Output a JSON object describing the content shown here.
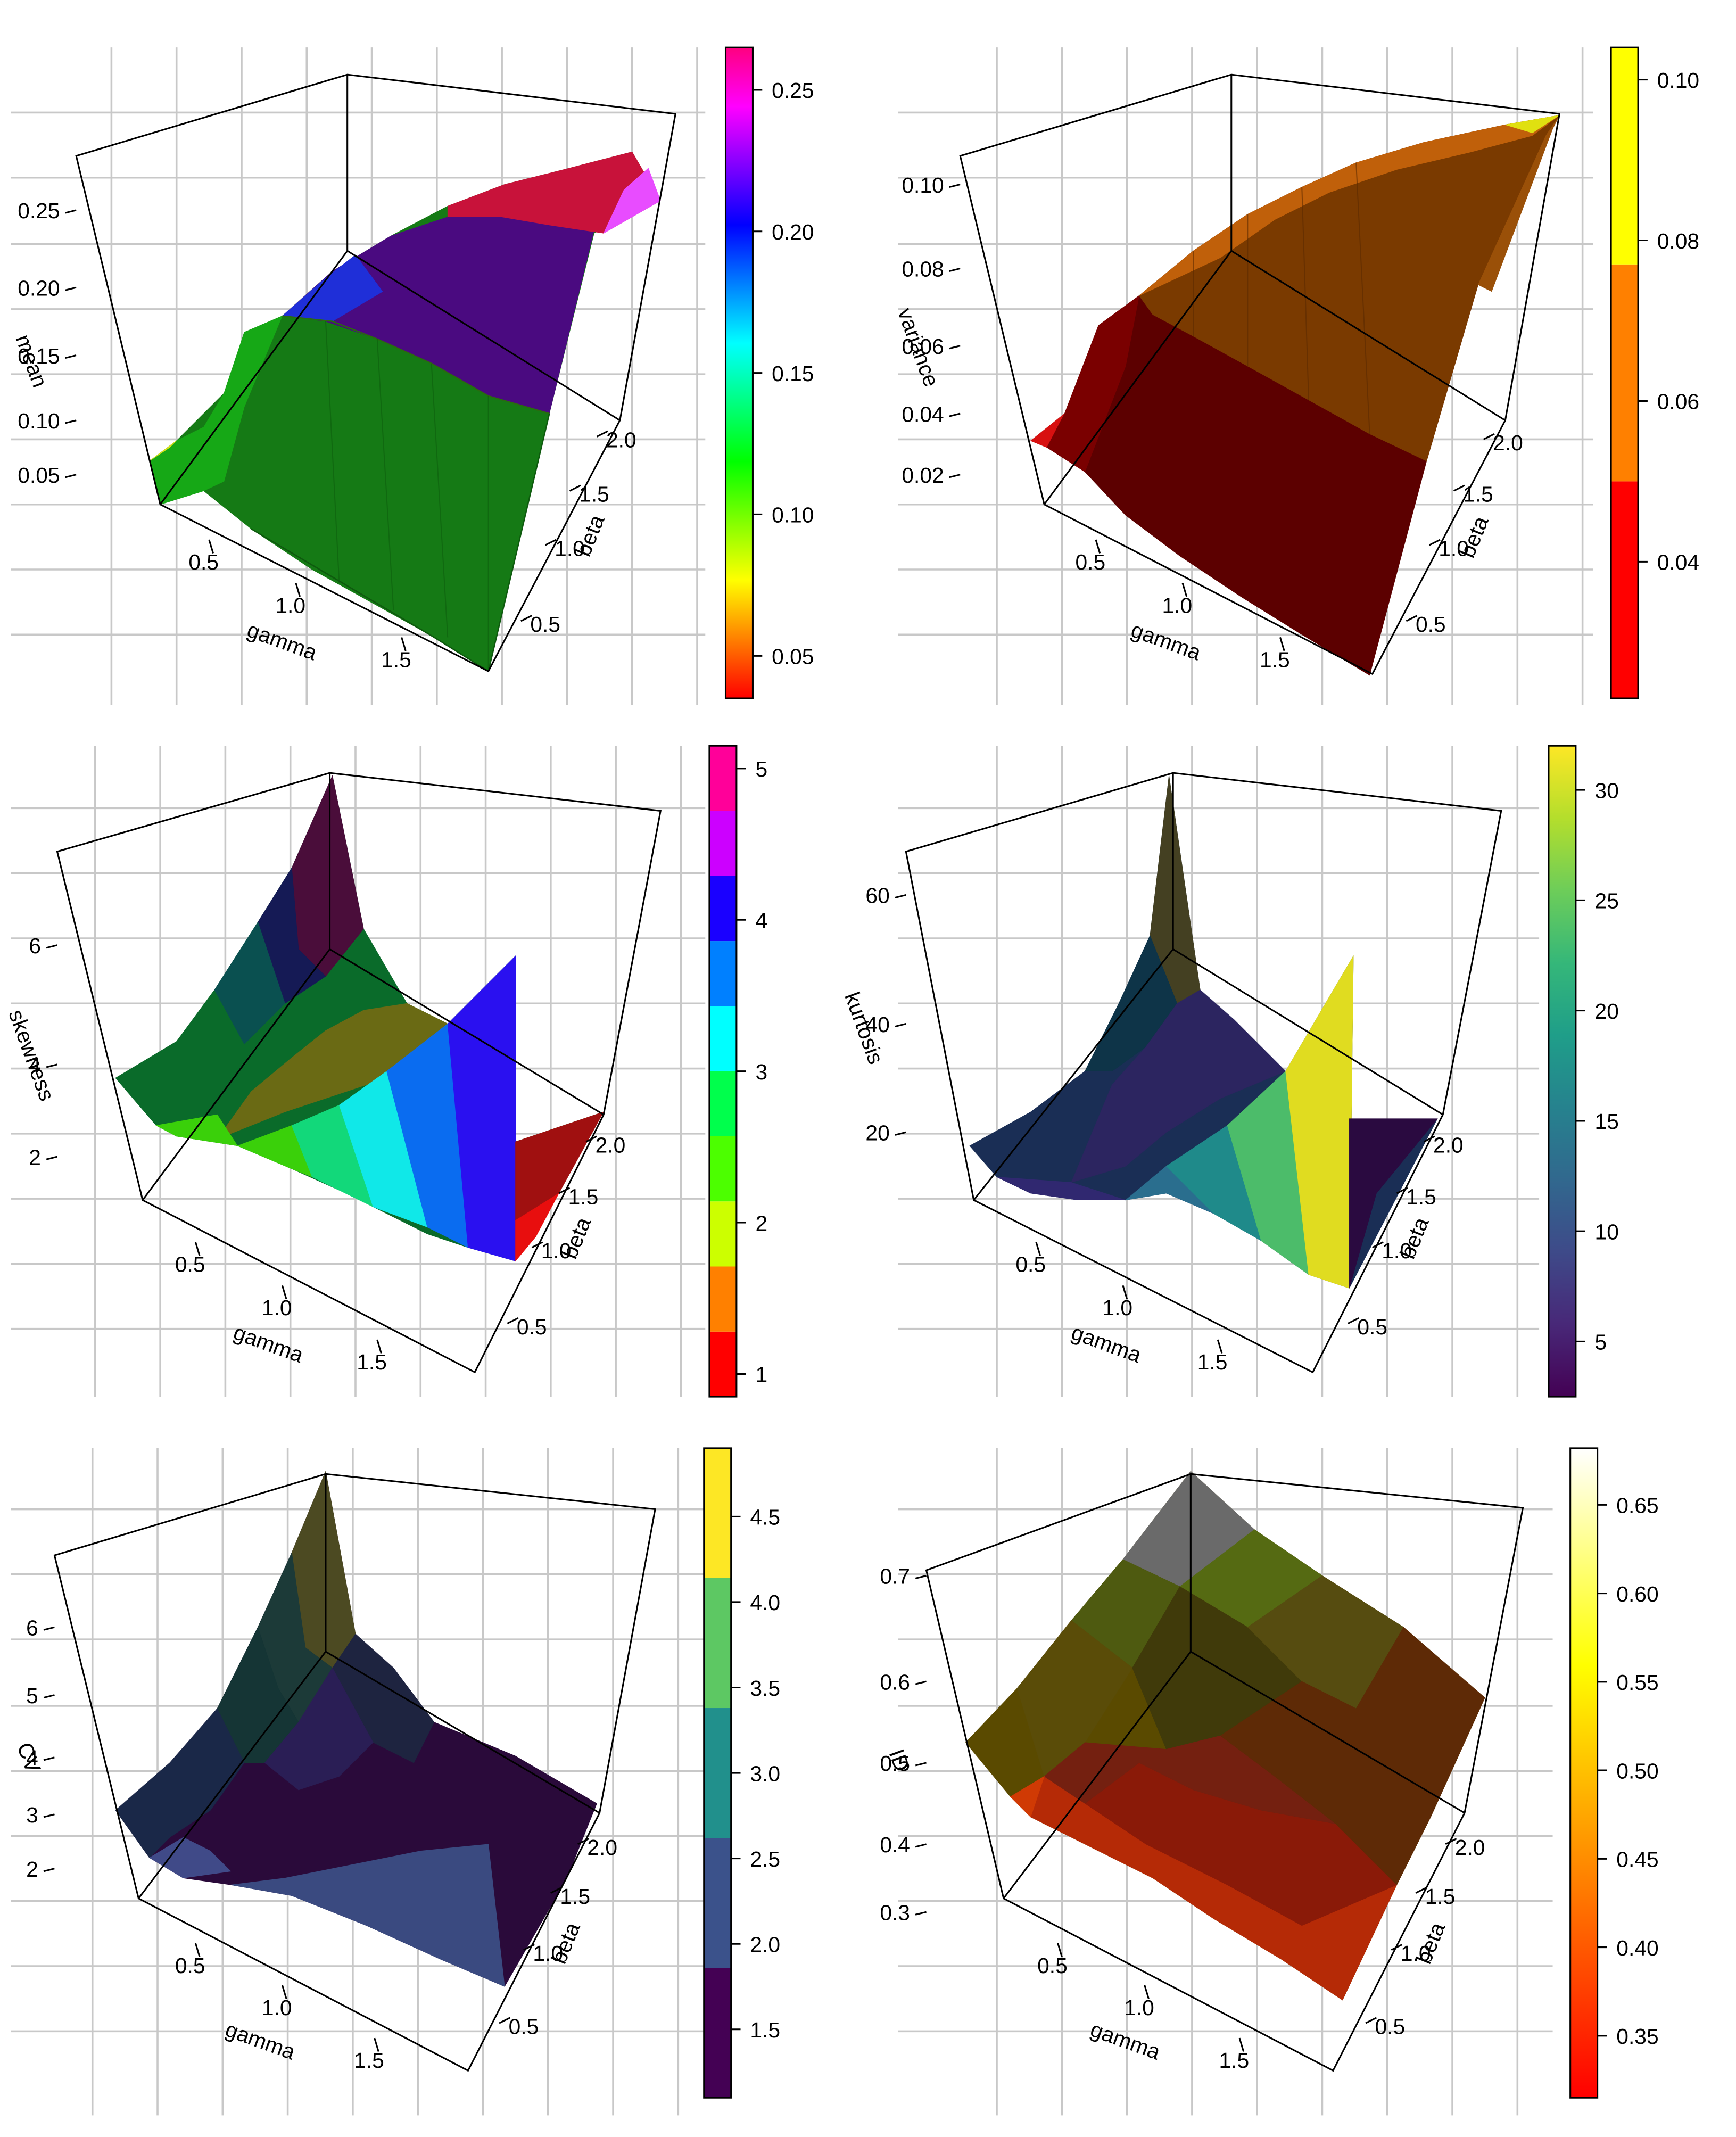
{
  "chart_data": [
    {
      "type": "surface",
      "zlabel": "mean",
      "xlabel": "gamma",
      "ylabel": "beta",
      "x_ticks": [
        "0.5",
        "1.0",
        "1.5"
      ],
      "y_ticks": [
        "0.5",
        "1.0",
        "1.5",
        "2.0"
      ],
      "z_ticks": [
        "0.05",
        "0.10",
        "0.15",
        "0.20",
        "0.25"
      ],
      "colorbar": {
        "type": "continuous",
        "ticks": [
          "0.05",
          "0.10",
          "0.15",
          "0.20",
          "0.25"
        ],
        "tick_values": [
          0.05,
          0.1,
          0.15,
          0.2,
          0.25
        ],
        "range": [
          0.035,
          0.265
        ],
        "colors": [
          "#ff0000",
          "#ff8000",
          "#ffff00",
          "#80ff00",
          "#00ff00",
          "#00ff80",
          "#00ffff",
          "#0080ff",
          "#0000ff",
          "#8000ff",
          "#ff00ff",
          "#ff0080"
        ]
      }
    },
    {
      "type": "surface",
      "zlabel": "variance",
      "xlabel": "gamma",
      "ylabel": "beta",
      "x_ticks": [
        "0.5",
        "1.0",
        "1.5"
      ],
      "y_ticks": [
        "0.5",
        "1.0",
        "1.5",
        "2.0"
      ],
      "z_ticks": [
        "0.02",
        "0.04",
        "0.06",
        "0.08",
        "0.10"
      ],
      "colorbar": {
        "type": "stepped",
        "ticks": [
          "0.04",
          "0.06",
          "0.08",
          "0.10"
        ],
        "tick_values": [
          0.04,
          0.06,
          0.08,
          0.1
        ],
        "range": [
          0.023,
          0.104
        ],
        "breaks": [
          0.023,
          0.05,
          0.077,
          0.104
        ],
        "colors": [
          "#ff0000",
          "#ff8000",
          "#ffff00"
        ]
      }
    },
    {
      "type": "surface",
      "zlabel": "skewness",
      "xlabel": "gamma",
      "ylabel": "beta",
      "x_ticks": [
        "0.5",
        "1.0",
        "1.5"
      ],
      "y_ticks": [
        "0.5",
        "1.0",
        "1.5",
        "2.0"
      ],
      "z_ticks": [
        "2",
        "4",
        "6"
      ],
      "colorbar": {
        "type": "stepped",
        "ticks": [
          "1",
          "2",
          "3",
          "4",
          "5"
        ],
        "tick_values": [
          1,
          2,
          3,
          4,
          5
        ],
        "range": [
          0.85,
          5.15
        ],
        "breaks": [
          0.85,
          1.28,
          1.71,
          2.14,
          2.57,
          3.0,
          3.43,
          3.86,
          4.29,
          4.72,
          5.15
        ],
        "colors": [
          "#ff0000",
          "#ff8000",
          "#ccff00",
          "#4cff00",
          "#00ff4c",
          "#00ffff",
          "#0080ff",
          "#1a00ff",
          "#cc00ff",
          "#ff0099"
        ]
      }
    },
    {
      "type": "surface",
      "zlabel": "kurtosis",
      "xlabel": "gamma",
      "ylabel": "beta",
      "x_ticks": [
        "0.5",
        "1.0",
        "1.5"
      ],
      "y_ticks": [
        "0.5",
        "1.0",
        "1.5",
        "2.0"
      ],
      "z_ticks": [
        "20",
        "40",
        "60"
      ],
      "colorbar": {
        "type": "continuous",
        "ticks": [
          "5",
          "10",
          "15",
          "20",
          "25",
          "30"
        ],
        "tick_values": [
          5,
          10,
          15,
          20,
          25,
          30
        ],
        "range": [
          2.5,
          32
        ],
        "colors": [
          "#440154",
          "#482878",
          "#3e4a89",
          "#31688e",
          "#26828e",
          "#1f9e89",
          "#35b779",
          "#6dcd59",
          "#b4de2c",
          "#fde725"
        ]
      }
    },
    {
      "type": "surface",
      "zlabel": "CV",
      "xlabel": "gamma",
      "ylabel": "beta",
      "x_ticks": [
        "0.5",
        "1.0",
        "1.5"
      ],
      "y_ticks": [
        "0.5",
        "1.0",
        "1.5",
        "2.0"
      ],
      "z_ticks": [
        "2",
        "3",
        "4",
        "5",
        "6"
      ],
      "colorbar": {
        "type": "stepped",
        "ticks": [
          "1.5",
          "2.0",
          "2.5",
          "3.0",
          "3.5",
          "4.0",
          "4.5"
        ],
        "tick_values": [
          1.5,
          2.0,
          2.5,
          3.0,
          3.5,
          4.0,
          4.5
        ],
        "range": [
          1.1,
          4.9
        ],
        "breaks": [
          1.1,
          1.86,
          2.62,
          3.38,
          4.14,
          4.9
        ],
        "colors": [
          "#440154",
          "#3b528b",
          "#21908c",
          "#5dc863",
          "#fde725"
        ]
      }
    },
    {
      "type": "surface",
      "zlabel": "ID",
      "xlabel": "gamma",
      "ylabel": "beta",
      "x_ticks": [
        "0.5",
        "1.0",
        "1.5"
      ],
      "y_ticks": [
        "0.5",
        "1.0",
        "1.5",
        "2.0"
      ],
      "z_ticks": [
        "0.3",
        "0.4",
        "0.5",
        "0.6",
        "0.7"
      ],
      "colorbar": {
        "type": "continuous",
        "ticks": [
          "0.35",
          "0.40",
          "0.45",
          "0.50",
          "0.55",
          "0.60",
          "0.65"
        ],
        "tick_values": [
          0.35,
          0.4,
          0.45,
          0.5,
          0.55,
          0.6,
          0.65
        ],
        "range": [
          0.315,
          0.682
        ],
        "colors": [
          "#ff0000",
          "#ff4000",
          "#ff8000",
          "#ffbf00",
          "#ffff00",
          "#ffff80",
          "#ffffff"
        ]
      }
    }
  ]
}
